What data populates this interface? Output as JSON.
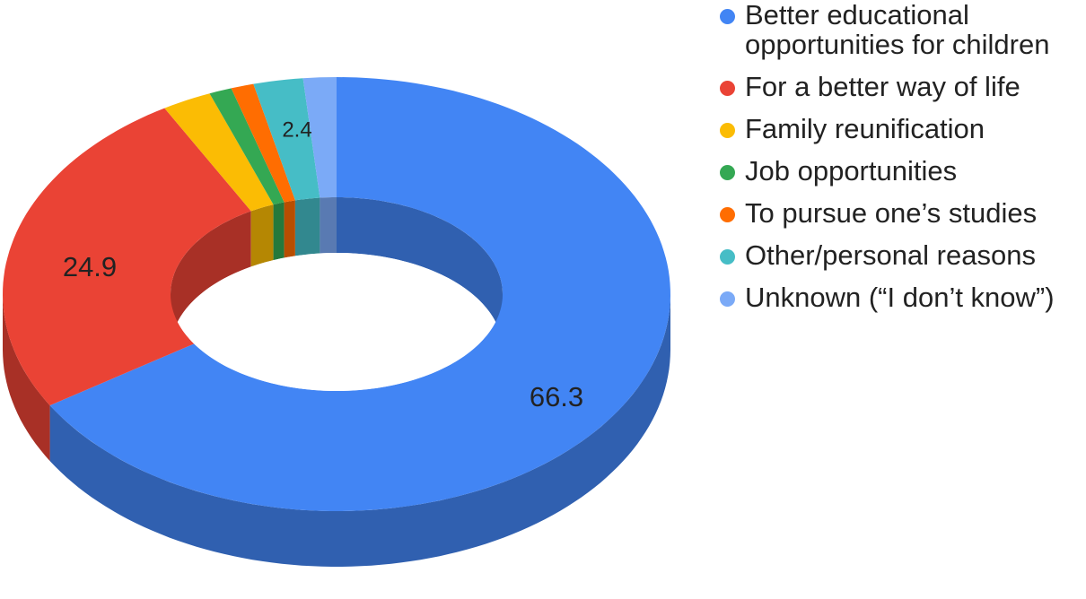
{
  "chart_data": {
    "type": "pie",
    "variant": "donut-3d",
    "categories": [
      "Better educational opportunities for children",
      "For a better way of life",
      "Family reunification",
      "Job opportunities",
      "To pursue one’s studies",
      "Other/personal reasons",
      "Unknown (“I don’t know”)"
    ],
    "values": [
      66.3,
      24.9,
      2.4,
      1.1,
      1.1,
      2.4,
      1.6
    ],
    "data_labels": [
      {
        "index": 0,
        "text": "66.3"
      },
      {
        "index": 1,
        "text": "24.9"
      },
      {
        "index": 5,
        "text": "2.4"
      }
    ],
    "colors": [
      "#4285f4",
      "#ea4335",
      "#fbbc04",
      "#34a853",
      "#ff6d01",
      "#46bdc6",
      "#7baaf7"
    ],
    "legend_position": "right",
    "start_angle": "top",
    "direction": "clockwise"
  },
  "legend": {
    "items": [
      {
        "label": "Better educational opportunities for children",
        "color": "#4285f4"
      },
      {
        "label": "For a better way of life",
        "color": "#ea4335"
      },
      {
        "label": "Family reunification",
        "color": "#fbbc04"
      },
      {
        "label": "Job opportunities",
        "color": "#34a853"
      },
      {
        "label": "To pursue one’s studies",
        "color": "#ff6d01"
      },
      {
        "label": "Other/personal reasons",
        "color": "#46bdc6"
      },
      {
        "label": "Unknown (“I don’t know”)",
        "color": "#7baaf7"
      }
    ]
  }
}
